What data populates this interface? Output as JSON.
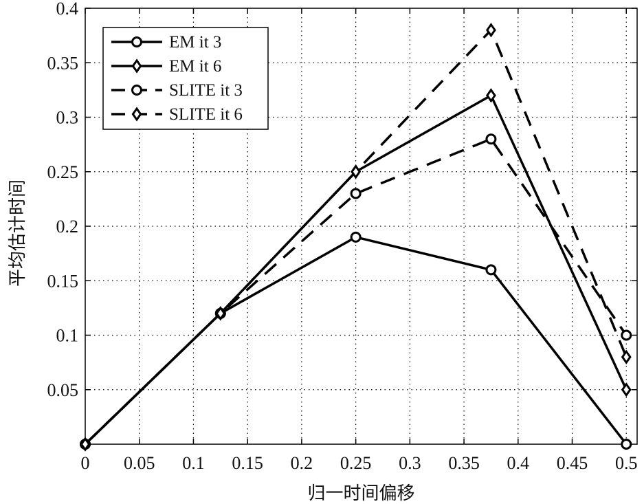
{
  "chart_data": {
    "type": "line",
    "title": "",
    "xlabel": "归一时间偏移",
    "ylabel": "平均估计时间",
    "xlim": [
      0,
      0.51
    ],
    "ylim": [
      0,
      0.4
    ],
    "grid": true,
    "legend_position": "top-left",
    "x_ticks": [
      "0",
      "0.05",
      "0.1",
      "0.15",
      "0.2",
      "0.25",
      "0.3",
      "0.35",
      "0.4",
      "0.45",
      "0.5"
    ],
    "y_ticks": [
      "0.05",
      "0.1",
      "0.15",
      "0.2",
      "0.25",
      "0.3",
      "0.35",
      "0.4"
    ],
    "x": [
      0,
      0.125,
      0.25,
      0.375,
      0.5
    ],
    "series": [
      {
        "name": "EM it 3",
        "marker": "circle",
        "line": "solid",
        "values": [
          0,
          0.12,
          0.19,
          0.16,
          0
        ]
      },
      {
        "name": "EM it 6",
        "marker": "diamond",
        "line": "solid",
        "values": [
          0,
          0.12,
          0.25,
          0.32,
          0.05
        ]
      },
      {
        "name": "SLITE it 3",
        "marker": "circle",
        "line": "dashed",
        "values": [
          0,
          0.12,
          0.23,
          0.28,
          0.1
        ]
      },
      {
        "name": "SLITE it 6",
        "marker": "diamond",
        "line": "dashed",
        "values": [
          0,
          0.12,
          0.25,
          0.38,
          0.08
        ]
      }
    ],
    "colors": {
      "line": "#000000",
      "grid": "#000000",
      "background": "#ffffff"
    }
  }
}
